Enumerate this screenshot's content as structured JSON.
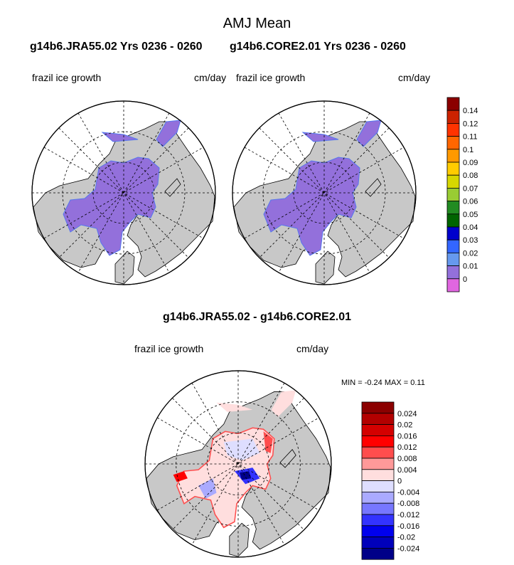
{
  "figure": {
    "title": "AMJ Mean",
    "left_subtitle": "g14b6.JRA55.02  Yrs 0236 - 0260",
    "right_subtitle": "g14b6.CORE2.01  Yrs 0236 - 0260",
    "diff_title": "g14b6.JRA55.02 - g14b6.CORE2.01"
  },
  "panels": {
    "left": {
      "variable": "frazil ice growth",
      "units": "cm/day"
    },
    "right": {
      "variable": "frazil ice growth",
      "units": "cm/day"
    },
    "diff": {
      "variable": "frazil ice growth",
      "units": "cm/day",
      "stats": {
        "min_label": "MIN =",
        "min": "-0.24",
        "max_label": "MAX =",
        "max": "0.11"
      }
    }
  },
  "colorbar_top": {
    "labels": [
      "0.14",
      "0.12",
      "0.11",
      "0.1",
      "0.09",
      "0.08",
      "0.07",
      "0.06",
      "0.05",
      "0.04",
      "0.03",
      "0.02",
      "0.01",
      "0"
    ],
    "colors": [
      "#8b0000",
      "#cc2200",
      "#ff3300",
      "#ff6600",
      "#ff9900",
      "#ffcc00",
      "#d7d700",
      "#99cc33",
      "#228b22",
      "#006400",
      "#0000cc",
      "#3366ff",
      "#6699ee",
      "#9370db",
      "#e066e0"
    ]
  },
  "colorbar_diff": {
    "labels": [
      "0.024",
      "0.02",
      "0.016",
      "0.012",
      "0.008",
      "0.004",
      "0",
      "-0.004",
      "-0.008",
      "-0.012",
      "-0.016",
      "-0.02",
      "-0.024"
    ],
    "colors": [
      "#8b0000",
      "#b30000",
      "#d40000",
      "#ff0000",
      "#ff4d4d",
      "#ff9999",
      "#ffdede",
      "#dedeff",
      "#aaaaff",
      "#7777ff",
      "#3333ff",
      "#0000ee",
      "#0000bb",
      "#000088"
    ]
  },
  "colors": {
    "land": "#c8c8c8",
    "ocean": "#ffffff",
    "ice_top": "#9370db",
    "ice_edge": "#5577ee"
  }
}
